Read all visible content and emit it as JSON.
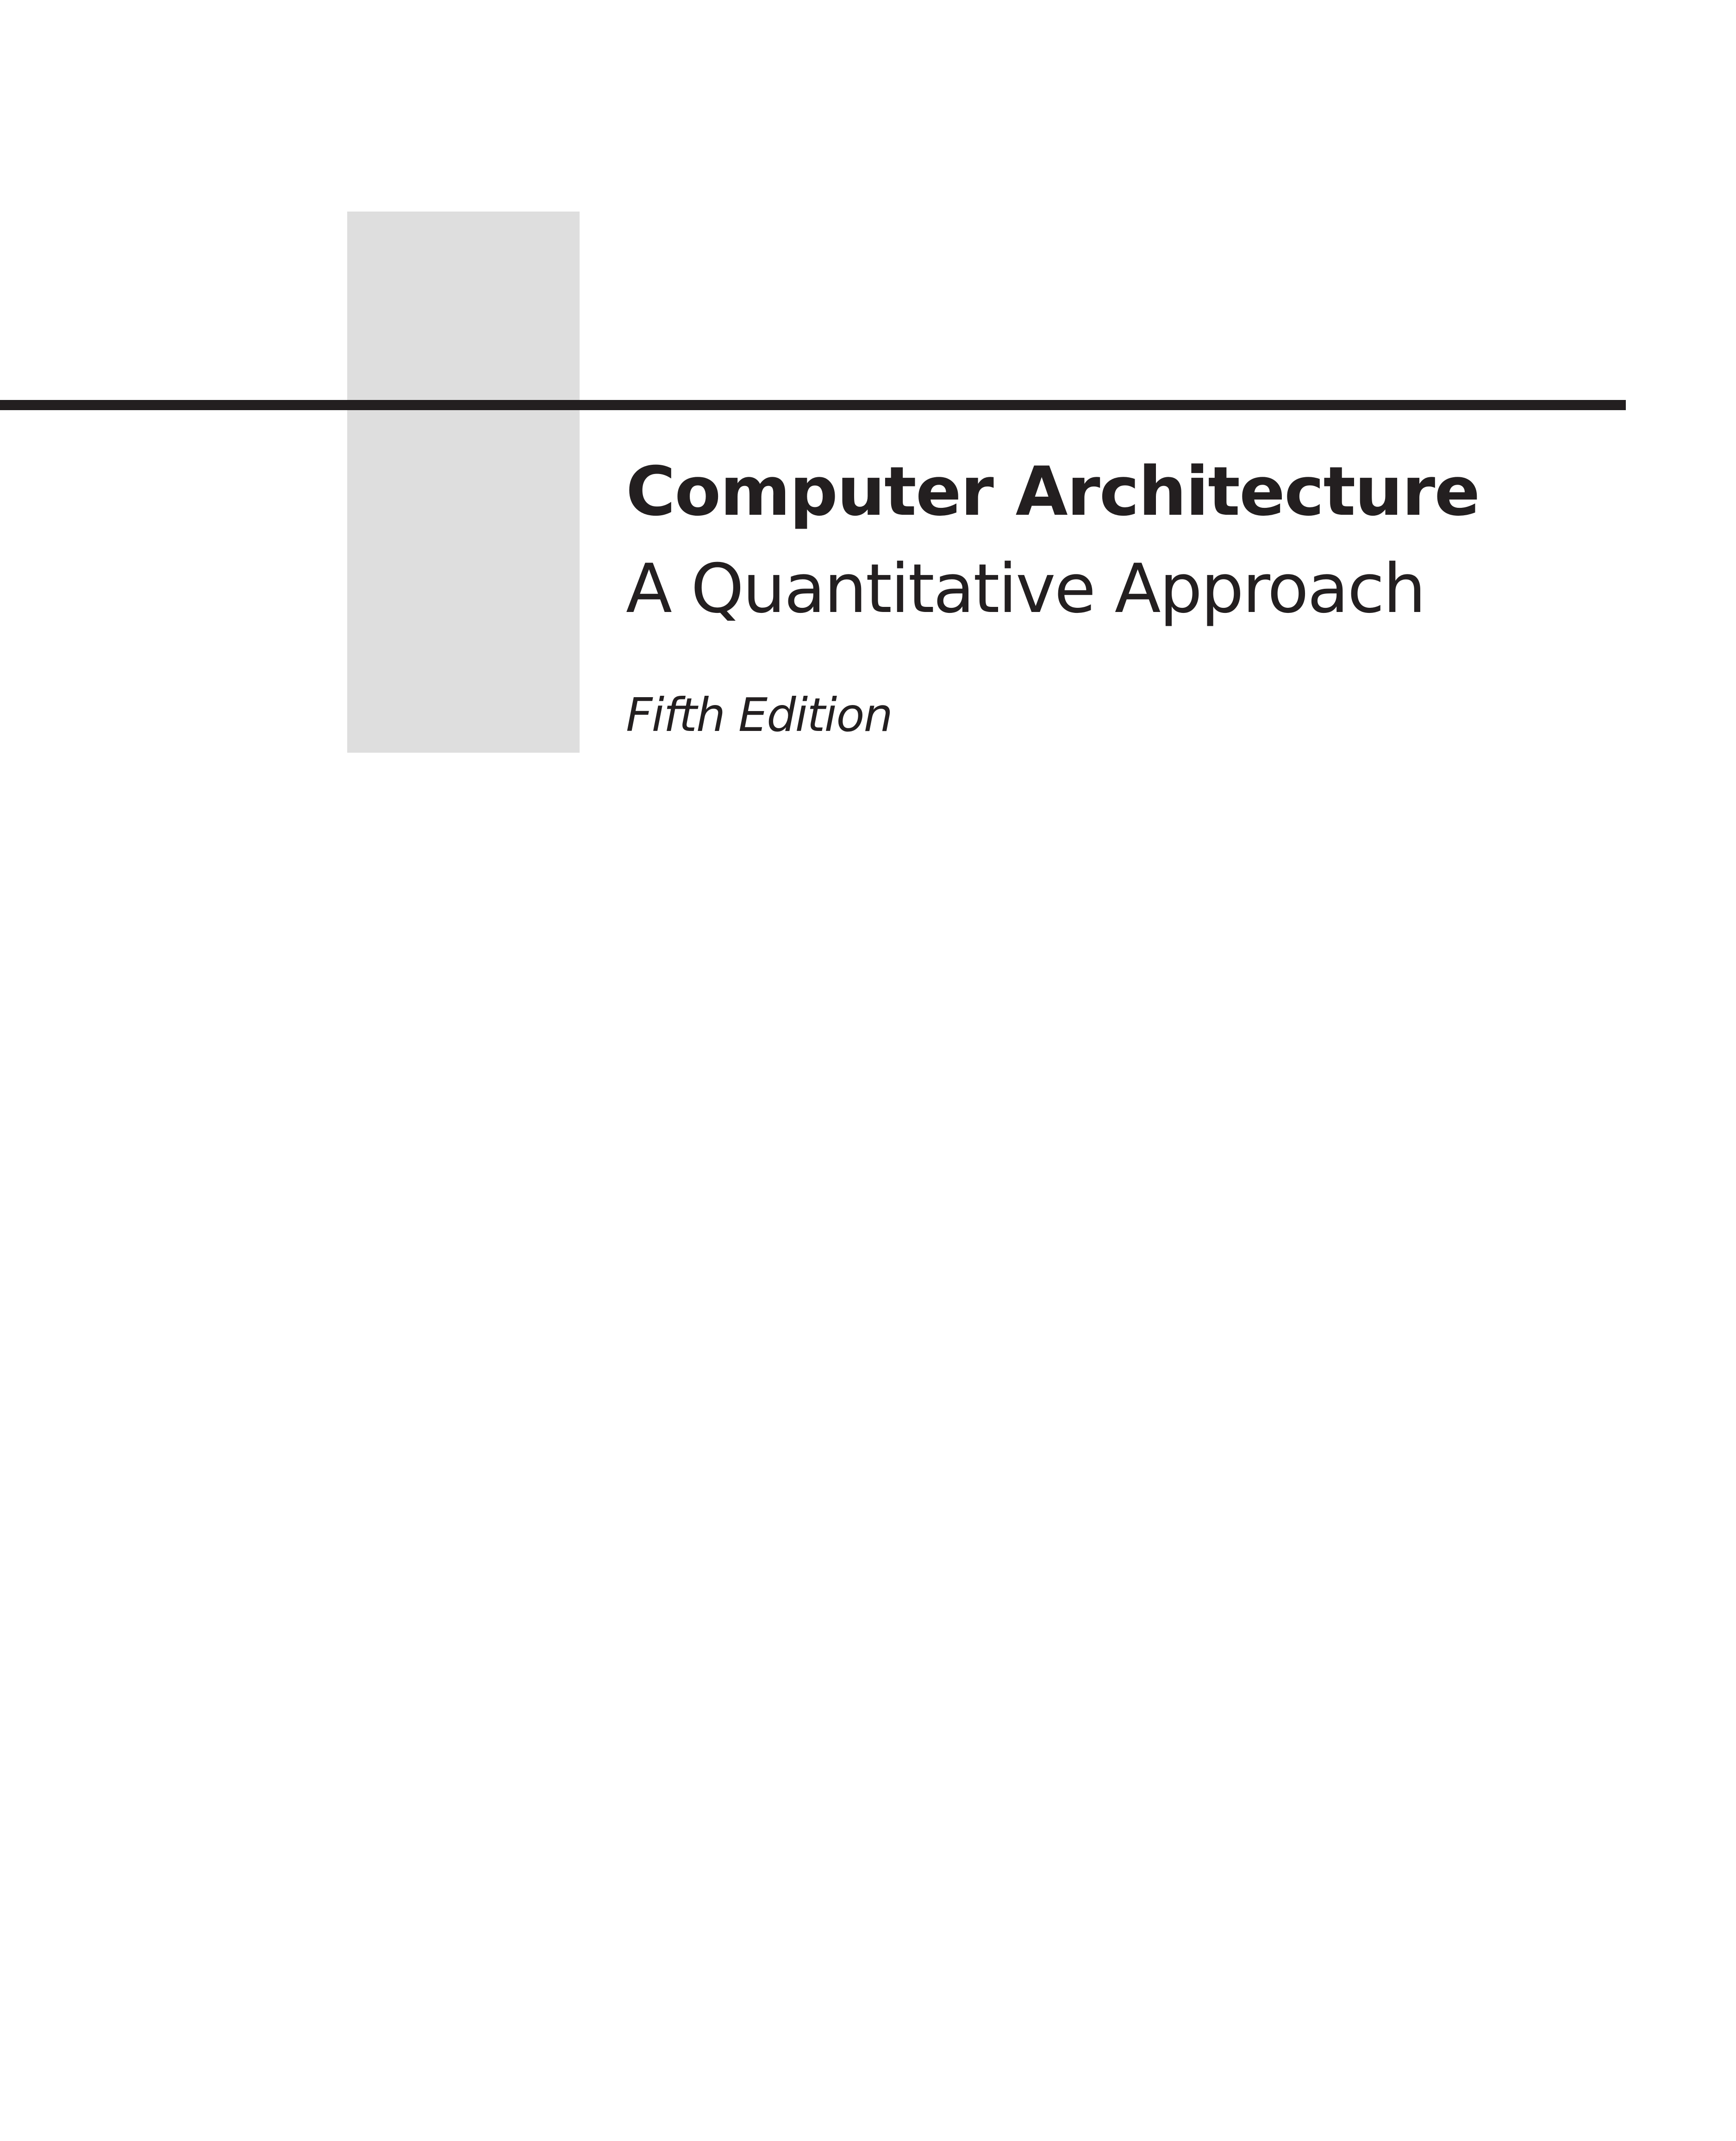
{
  "book": {
    "title": "Computer Architecture",
    "subtitle": "A Quantitative Approach",
    "edition": "Fifth Edition"
  },
  "colors": {
    "text": "#231f20",
    "rule": "#231f20",
    "accent_block": "#dedede",
    "background": "#ffffff"
  }
}
